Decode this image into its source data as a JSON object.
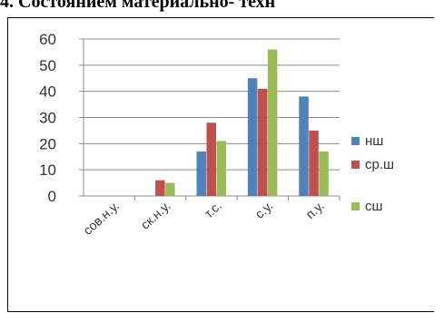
{
  "heading": "4. Состоянием материально- техн",
  "colors": {
    "нш": "#4f81bd",
    "ср.ш": "#c0504d",
    "сш": "#9bbb59",
    "grid": "#8c8c8c"
  },
  "chart_data": {
    "type": "bar",
    "title": "",
    "xlabel": "",
    "ylabel": "",
    "categories": [
      "сов.н.у.",
      "ск.н.у.",
      "т.с.",
      "с.у.",
      "п.у."
    ],
    "series": [
      {
        "name": "нш",
        "values": [
          0,
          0,
          17,
          45,
          38
        ]
      },
      {
        "name": "ср.ш",
        "values": [
          0,
          6,
          28,
          41,
          25
        ]
      },
      {
        "name": "сш",
        "values": [
          0,
          5,
          21,
          56,
          17
        ]
      }
    ],
    "ylim": [
      0,
      60
    ],
    "yticks": [
      "0",
      "10",
      "20",
      "30",
      "40",
      "50",
      "60"
    ],
    "grid": true,
    "legend_position": "right"
  }
}
